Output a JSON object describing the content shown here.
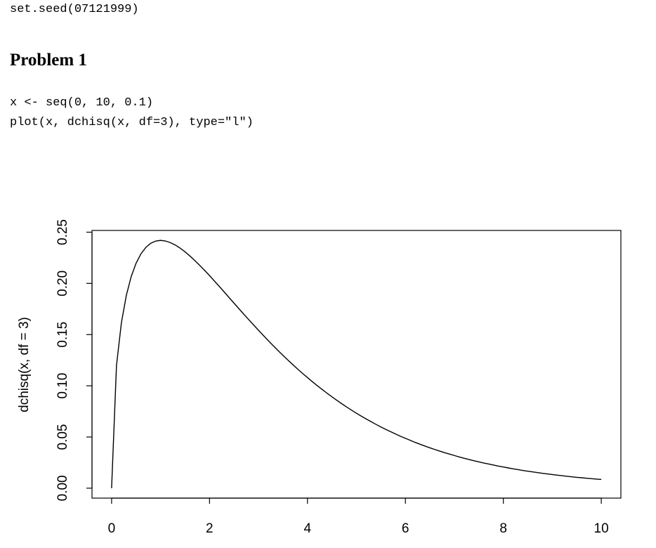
{
  "code_1": "set.seed(07121999)",
  "heading": "Problem 1",
  "code_2": [
    "x <- seq(0, 10, 0.1)",
    "plot(x, dchisq(x, df=3), type=\"l\")"
  ],
  "chart_data": {
    "type": "line",
    "ylabel": "dchisq(x, df = 3)",
    "color": "#000000",
    "x": [
      0,
      0.1,
      0.2,
      0.3,
      0.4,
      0.5,
      0.6,
      0.7,
      0.8,
      0.9,
      1,
      1.1,
      1.2,
      1.3,
      1.4,
      1.5,
      1.6,
      1.7,
      1.8,
      1.9,
      2,
      2.1,
      2.2,
      2.3,
      2.4,
      2.5,
      2.6,
      2.7,
      2.8,
      2.9,
      3,
      3.1,
      3.2,
      3.3,
      3.4,
      3.5,
      3.6,
      3.7,
      3.8,
      3.9,
      4,
      4.1,
      4.2,
      4.3,
      4.4,
      4.5,
      4.6,
      4.7,
      4.8,
      4.9,
      5,
      5.1,
      5.2,
      5.3,
      5.4,
      5.5,
      5.6,
      5.7,
      5.8,
      5.9,
      6,
      6.1,
      6.2,
      6.3,
      6.4,
      6.5,
      6.6,
      6.7,
      6.8,
      6.9,
      7,
      7.1,
      7.2,
      7.3,
      7.4,
      7.5,
      7.6,
      7.7,
      7.8,
      7.9,
      8,
      8.1,
      8.2,
      8.3,
      8.4,
      8.5,
      8.6,
      8.7,
      8.8,
      8.9,
      9,
      9.1,
      9.2,
      9.3,
      9.4,
      9.5,
      9.6,
      9.7,
      9.8,
      9.9,
      10
    ],
    "values": [
      0,
      0.12,
      0.1614,
      0.1881,
      0.2066,
      0.2197,
      0.2289,
      0.2352,
      0.2392,
      0.2413,
      0.242,
      0.2414,
      0.2398,
      0.2375,
      0.2344,
      0.2308,
      0.2267,
      0.2223,
      0.2176,
      0.2127,
      0.2076,
      0.2023,
      0.197,
      0.1916,
      0.1861,
      0.1807,
      0.1753,
      0.1699,
      0.1646,
      0.1594,
      0.1542,
      0.1491,
      0.1441,
      0.1392,
      0.1344,
      0.1297,
      0.1251,
      0.1207,
      0.1163,
      0.1121,
      0.108,
      0.104,
      0.1001,
      0.0964,
      0.0927,
      0.0892,
      0.0858,
      0.0825,
      0.0793,
      0.0762,
      0.0732,
      0.0703,
      0.0676,
      0.0649,
      0.0623,
      0.0598,
      0.0574,
      0.0551,
      0.0529,
      0.0507,
      0.0487,
      0.0467,
      0.0447,
      0.0429,
      0.0411,
      0.0394,
      0.0378,
      0.0362,
      0.0347,
      0.0333,
      0.0319,
      0.0305,
      0.0292,
      0.028,
      0.0268,
      0.0257,
      0.0246,
      0.0236,
      0.0226,
      0.0216,
      0.0207,
      0.0198,
      0.0189,
      0.0181,
      0.0173,
      0.0166,
      0.0159,
      0.0152,
      0.0145,
      0.0139,
      0.0133,
      0.0127,
      0.0122,
      0.0116,
      0.0111,
      0.0106,
      0.0102,
      0.0097,
      0.0093,
      0.0089,
      0.0085
    ],
    "xlim": [
      -0.4,
      10.4
    ],
    "ylim": [
      -0.0097,
      0.2517
    ],
    "xticks": [
      0,
      2,
      4,
      6,
      8,
      10
    ],
    "yticks": [
      {
        "value": 0,
        "label": "0.00"
      },
      {
        "value": 0.05,
        "label": "0.05"
      },
      {
        "value": 0.1,
        "label": "0.10"
      },
      {
        "value": 0.15,
        "label": "0.15"
      },
      {
        "value": 0.2,
        "label": "0.20"
      },
      {
        "value": 0.25,
        "label": "0.25"
      }
    ]
  }
}
